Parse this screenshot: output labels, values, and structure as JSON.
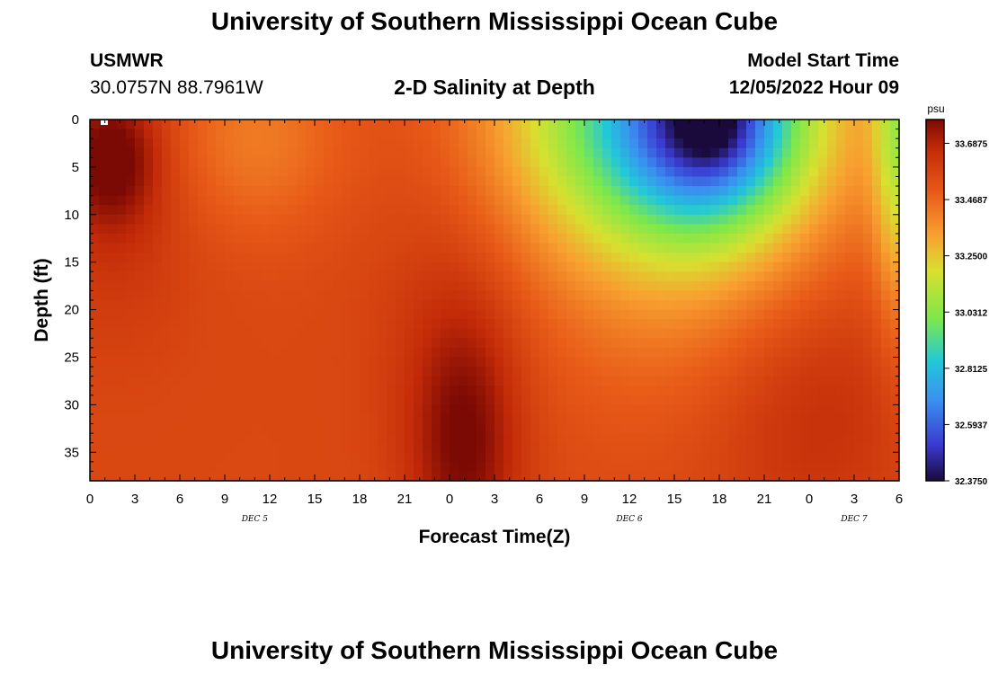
{
  "header": {
    "title": "University of Southern Mississippi Ocean Cube",
    "station": "USMWR",
    "coords": "30.0757N  88.7961W",
    "subtitle": "2-D Salinity at Depth",
    "model_start_label": "Model Start Time",
    "model_start_value": "12/05/2022 Hour 09"
  },
  "footer": {
    "title": "University of Southern Mississippi Ocean Cube"
  },
  "chart_data": {
    "type": "heatmap",
    "title": "2-D Salinity at Depth",
    "xlabel": "Forecast Time(Z)",
    "ylabel": "Depth (ft)",
    "x_range_hours": [
      0,
      54
    ],
    "y_range_ft": [
      0,
      38
    ],
    "x_ticks": [
      "0",
      "3",
      "6",
      "9",
      "12",
      "15",
      "18",
      "21",
      "0",
      "3",
      "6",
      "9",
      "12",
      "15",
      "18",
      "21",
      "0",
      "3",
      "6"
    ],
    "y_ticks": [
      "0",
      "5",
      "10",
      "15",
      "20",
      "25",
      "30",
      "35"
    ],
    "y_tick_values": [
      0,
      5,
      10,
      15,
      20,
      25,
      30,
      35
    ],
    "date_labels": [
      {
        "label": "DEC 5",
        "hour": 11
      },
      {
        "label": "DEC 6",
        "hour": 36
      },
      {
        "label": "DEC 7",
        "hour": 51
      }
    ],
    "colorbar": {
      "unit": "psu",
      "min": 32.375,
      "max": 33.78,
      "labels": [
        "33.6875",
        "33.4687",
        "33.2500",
        "33.0312",
        "32.8125",
        "32.5937",
        "32.3750"
      ],
      "label_values": [
        33.6875,
        33.4687,
        33.25,
        33.0312,
        32.8125,
        32.5937,
        32.375
      ]
    },
    "salinity_features": [
      {
        "desc": "fresh plume core",
        "hour": 42,
        "depth_ft": 0,
        "psu": 32.375
      },
      {
        "desc": "surface max",
        "hour": 2,
        "depth_ft": 5,
        "psu": 33.75
      },
      {
        "desc": "deep max",
        "hour": 25,
        "depth_ft": 33,
        "psu": 33.76
      }
    ]
  }
}
